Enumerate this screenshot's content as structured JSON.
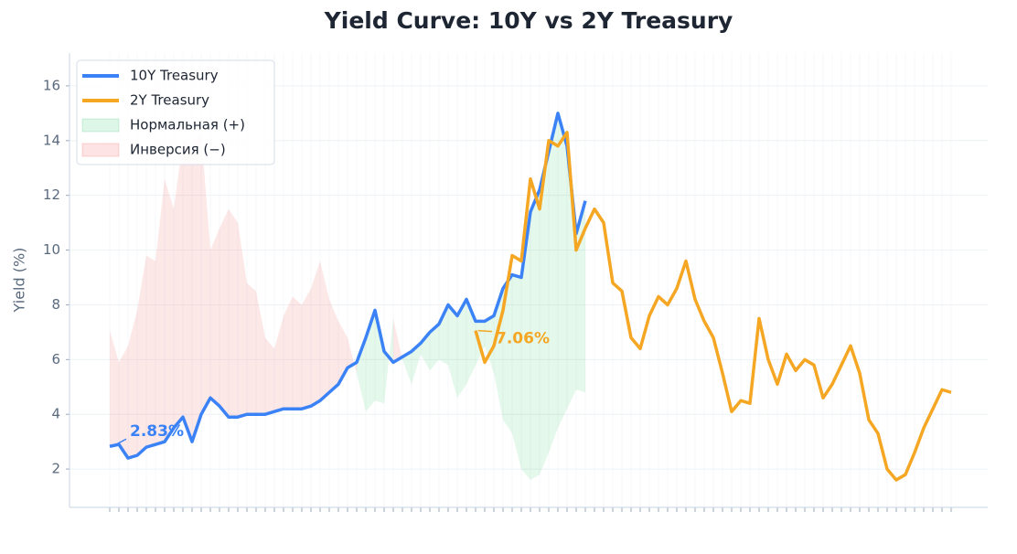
{
  "chart_data": {
    "type": "line",
    "title": "Yield Curve: 10Y vs 2Y Treasury",
    "y_label": "Yield (%)",
    "categories": [
      null,
      null,
      null,
      null,
      null,
      null,
      null,
      null,
      null,
      null,
      null,
      null,
      null,
      null,
      null,
      null,
      null,
      null,
      null,
      null,
      null,
      null,
      null,
      null,
      null,
      null,
      null,
      null,
      null,
      null,
      null,
      null,
      null,
      null,
      null,
      null,
      null,
      null,
      null,
      null,
      null,
      null,
      null,
      null,
      null,
      null,
      null,
      null,
      null,
      null,
      null,
      null,
      null,
      null,
      null,
      null,
      null,
      null,
      null,
      null,
      null,
      null,
      null,
      null,
      null,
      null,
      null,
      null,
      null,
      null,
      null,
      null,
      null,
      null,
      null,
      null,
      null,
      null,
      null,
      null,
      null,
      null,
      null,
      null,
      null,
      null,
      null,
      null,
      null,
      null,
      null,
      null,
      null
    ],
    "series": [
      {
        "name": "10Y Treasury",
        "color": "#3b82f6",
        "values": [
          2.83,
          2.9,
          2.4,
          2.5,
          2.8,
          2.9,
          3.0,
          3.5,
          3.9,
          3.0,
          4.0,
          4.6,
          4.3,
          3.9,
          3.9,
          4.0,
          4.0,
          4.0,
          4.1,
          4.2,
          4.2,
          4.2,
          4.3,
          4.5,
          4.8,
          5.1,
          5.7,
          5.9,
          6.8,
          7.8,
          6.3,
          5.9,
          6.1,
          6.3,
          6.6,
          7.0,
          7.3,
          8.0,
          7.6,
          8.2,
          7.4,
          7.4,
          7.6,
          8.6,
          9.1,
          9.0,
          11.4,
          12.2,
          13.6,
          15.0,
          13.8,
          10.6,
          11.8,
          null,
          null,
          null,
          null,
          null,
          null,
          null,
          null,
          null,
          null,
          null,
          null,
          null,
          null,
          null,
          null,
          null,
          null,
          null,
          null,
          null,
          null,
          null,
          null,
          null,
          null,
          null,
          null,
          null,
          null,
          null,
          null,
          null,
          null,
          null,
          null,
          null,
          null,
          null,
          null
        ]
      },
      {
        "name": "2Y Treasury",
        "color": "#f5a623",
        "values": [
          null,
          null,
          null,
          null,
          null,
          null,
          null,
          null,
          null,
          null,
          null,
          null,
          null,
          null,
          null,
          null,
          null,
          null,
          null,
          null,
          null,
          null,
          null,
          null,
          null,
          null,
          null,
          null,
          null,
          null,
          null,
          null,
          null,
          null,
          null,
          null,
          null,
          null,
          null,
          null,
          7.06,
          5.9,
          6.5,
          7.8,
          9.8,
          9.6,
          12.6,
          11.5,
          14.0,
          13.8,
          14.3,
          10.0,
          10.8,
          11.5,
          11.0,
          8.8,
          8.5,
          6.8,
          6.4,
          7.6,
          8.3,
          8.0,
          8.6,
          9.6,
          8.2,
          7.4,
          6.8,
          5.5,
          4.1,
          4.5,
          4.4,
          7.5,
          6.0,
          5.1,
          6.2,
          5.6,
          6.0,
          5.8,
          4.6,
          5.1,
          5.8,
          6.5,
          5.5,
          3.8,
          3.3,
          2.0,
          1.6,
          1.8,
          2.6,
          3.5,
          4.2,
          4.9,
          4.8
        ]
      }
    ],
    "fill_legend": [
      {
        "name": "Нормальная (+)",
        "color": "#22c55e"
      },
      {
        "name": "Инверсия (−)",
        "color": "#ef4444"
      }
    ],
    "annotations": [
      {
        "text": "2.83%",
        "series": 0
      },
      {
        "text": "7.06%",
        "series": 1
      }
    ],
    "ylim": [
      0.6,
      17.2
    ],
    "yticks": [
      2,
      4,
      6,
      8,
      10,
      12,
      14,
      16
    ],
    "grid": true,
    "legend": "upper-left"
  }
}
